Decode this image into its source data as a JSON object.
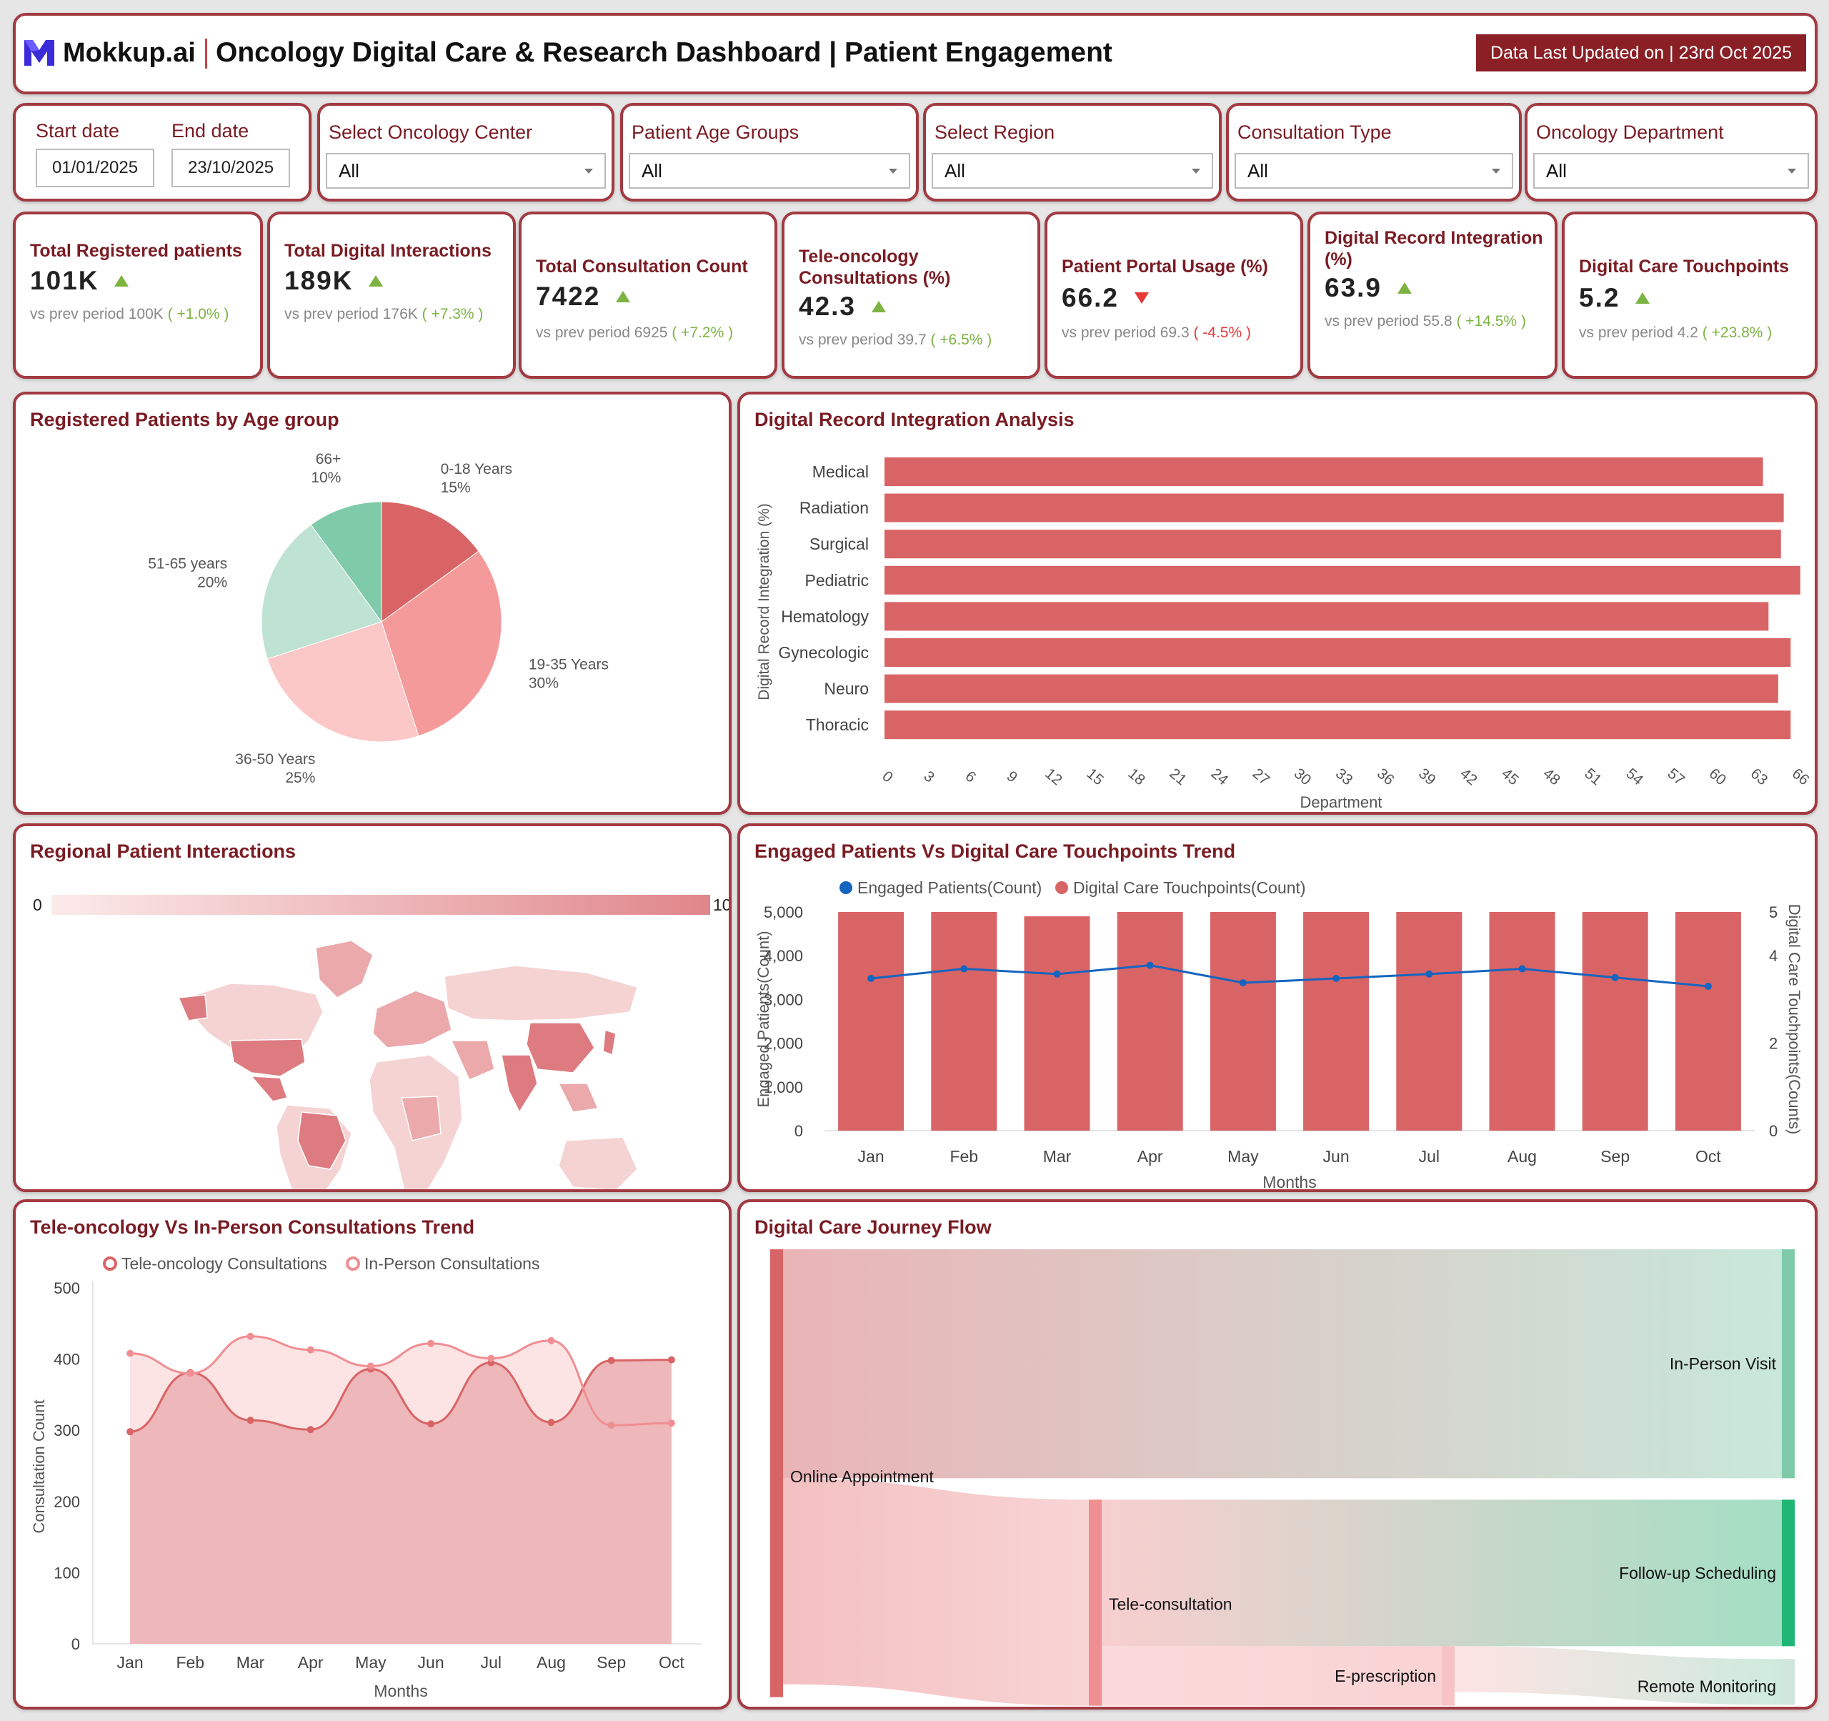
{
  "header": {
    "logo_text": "Mokkup.ai",
    "title": "Oncology Digital Care & Research Dashboard | Patient Engagement",
    "updated": "Data Last Updated on | 23rd Oct 2025"
  },
  "filters": {
    "start_label": "Start date",
    "start_value": "01/01/2025",
    "end_label": "End date",
    "end_value": "23/10/2025",
    "dropdowns": [
      {
        "label": "Select Oncology Center",
        "value": "All"
      },
      {
        "label": "Patient Age Groups",
        "value": "All"
      },
      {
        "label": "Select Region",
        "value": "All"
      },
      {
        "label": "Consultation Type",
        "value": "All"
      },
      {
        "label": "Oncology Department",
        "value": "All"
      }
    ]
  },
  "kpis": [
    {
      "title": "Total Registered patients",
      "value": "101K",
      "trend": "up",
      "prefix": "vs prev period",
      "prev": "100K",
      "change": "( +1.0% )"
    },
    {
      "title": "Total Digital Interactions",
      "value": "189K",
      "trend": "up",
      "prefix": "vs prev period",
      "prev": "176K",
      "change": "( +7.3% )"
    },
    {
      "title": "Total Consultation Count",
      "value": "7422",
      "trend": "up",
      "prefix": "vs prev period",
      "prev": "6925",
      "change": "( +7.2% )"
    },
    {
      "title": "Tele-oncology Consultations (%)",
      "value": "42.3",
      "trend": "up",
      "prefix": "vs prev period",
      "prev": "39.7",
      "change": "( +6.5% )"
    },
    {
      "title": "Patient Portal Usage (%)",
      "value": "66.2",
      "trend": "down",
      "prefix": "vs prev period",
      "prev": "69.3",
      "change": "( -4.5% )"
    },
    {
      "title": "Digital Record Integration (%)",
      "value": "63.9",
      "trend": "up",
      "prefix": "vs prev period",
      "prev": "55.8",
      "change": "( +14.5% )"
    },
    {
      "title": "Digital Care Touchpoints",
      "value": "5.2",
      "trend": "up",
      "prefix": "vs prev period",
      "prev": "4.2",
      "change": "( +23.8% )"
    }
  ],
  "panels": {
    "age": "Registered Patients by Age group",
    "integration": "Digital Record Integration Analysis",
    "regional": "Regional Patient Interactions",
    "engaged": "Engaged Patients Vs Digital Care Touchpoints Trend",
    "consult": "Tele-oncology Vs In-Person Consultations Trend",
    "journey": "Digital Care Journey Flow"
  },
  "colors": {
    "primary": "#d96466",
    "dark": "#8a1f26",
    "title": "#7a1c24",
    "line": "#1565c0",
    "green": "#7cb342",
    "red": "#e53935"
  },
  "chart_data": [
    {
      "id": "age_pie",
      "type": "pie",
      "categories": [
        "0-18 Years",
        "19-35 Years",
        "36-50 Years",
        "51-65 years",
        "66+"
      ],
      "values": [
        15,
        30,
        25,
        20,
        10
      ],
      "labels": [
        "15%",
        "30%",
        "25%",
        "20%",
        "10%"
      ],
      "colors": [
        "#d96466",
        "#f49a9a",
        "#fcc7c7",
        "#bfe3d2",
        "#7fcaa9"
      ]
    },
    {
      "id": "integration_bar",
      "type": "bar",
      "orientation": "horizontal",
      "categories": [
        "Medical",
        "Radiation",
        "Surgical",
        "Pediatric",
        "Hematology",
        "Gynecologic",
        "Neuro",
        "Thoracic"
      ],
      "values": [
        63.5,
        65.0,
        64.8,
        66.2,
        63.9,
        65.5,
        64.6,
        65.5
      ],
      "xlim": [
        0,
        66
      ],
      "ticks": [
        0,
        3,
        6,
        9,
        12,
        15,
        18,
        21,
        24,
        27,
        30,
        33,
        36,
        39,
        42,
        45,
        48,
        51,
        54,
        57,
        60,
        63,
        66
      ],
      "xlabel": "Department",
      "ylabel": "Digital Record Integration (%)"
    },
    {
      "id": "regional_map",
      "type": "heatmap",
      "scale_min": "0",
      "scale_max": "10"
    },
    {
      "id": "engaged_combo",
      "type": "bar",
      "categories": [
        "Jan",
        "Feb",
        "Mar",
        "Apr",
        "May",
        "Jun",
        "Jul",
        "Aug",
        "Sep",
        "Oct"
      ],
      "series": [
        {
          "name": "Engaged Patients(Count)",
          "type": "line",
          "axis": "left",
          "values": [
            3480,
            3700,
            3580,
            3780,
            3380,
            3480,
            3580,
            3700,
            3500,
            3300
          ]
        },
        {
          "name": "Digital Care Touchpoints(Count)",
          "type": "bar",
          "axis": "right",
          "values": [
            5,
            5,
            4.9,
            5,
            5,
            5,
            5,
            5,
            5,
            5
          ]
        }
      ],
      "ylim": [
        0,
        5000
      ],
      "yticks": [
        "0",
        "1,000",
        "2,000",
        "3,000",
        "4,000",
        "5,000"
      ],
      "y2lim": [
        0,
        5
      ],
      "y2ticks": [
        "0",
        "2",
        "4",
        "5"
      ],
      "xlabel": "Months",
      "ylabel": "Engaged Patients(Count)",
      "y2label": "Digital Care Touchpoints(Counts)"
    },
    {
      "id": "consult_area",
      "type": "area",
      "categories": [
        "Jan",
        "Feb",
        "Mar",
        "Apr",
        "May",
        "Jun",
        "Jul",
        "Aug",
        "Sep",
        "Oct"
      ],
      "series": [
        {
          "name": "Tele-oncology Consultations",
          "values": [
            298,
            381,
            314,
            301,
            386,
            309,
            395,
            311,
            398,
            399
          ]
        },
        {
          "name": "In-Person Consultations",
          "values": [
            408,
            380,
            432,
            413,
            390,
            422,
            401,
            426,
            307,
            310
          ]
        }
      ],
      "ylim": [
        0,
        500
      ],
      "yticks": [
        "0",
        "100",
        "200",
        "300",
        "400",
        "500"
      ],
      "xlabel": "Months",
      "ylabel": "Consultation Count"
    },
    {
      "id": "journey_sankey",
      "type": "sankey",
      "nodes": [
        "Online Appointment",
        "In-Person Visit",
        "Tele-consultation",
        "Follow-up Scheduling",
        "E-prescription",
        "Remote Monitoring"
      ],
      "links": [
        {
          "source": "Online Appointment",
          "target": "In-Person Visit",
          "value": 50
        },
        {
          "source": "Online Appointment",
          "target": "Tele-consultation",
          "value": 45
        },
        {
          "source": "Tele-consultation",
          "target": "Follow-up Scheduling",
          "value": 32
        },
        {
          "source": "Tele-consultation",
          "target": "E-prescription",
          "value": 13
        },
        {
          "source": "E-prescription",
          "target": "Remote Monitoring",
          "value": 10
        }
      ]
    }
  ]
}
